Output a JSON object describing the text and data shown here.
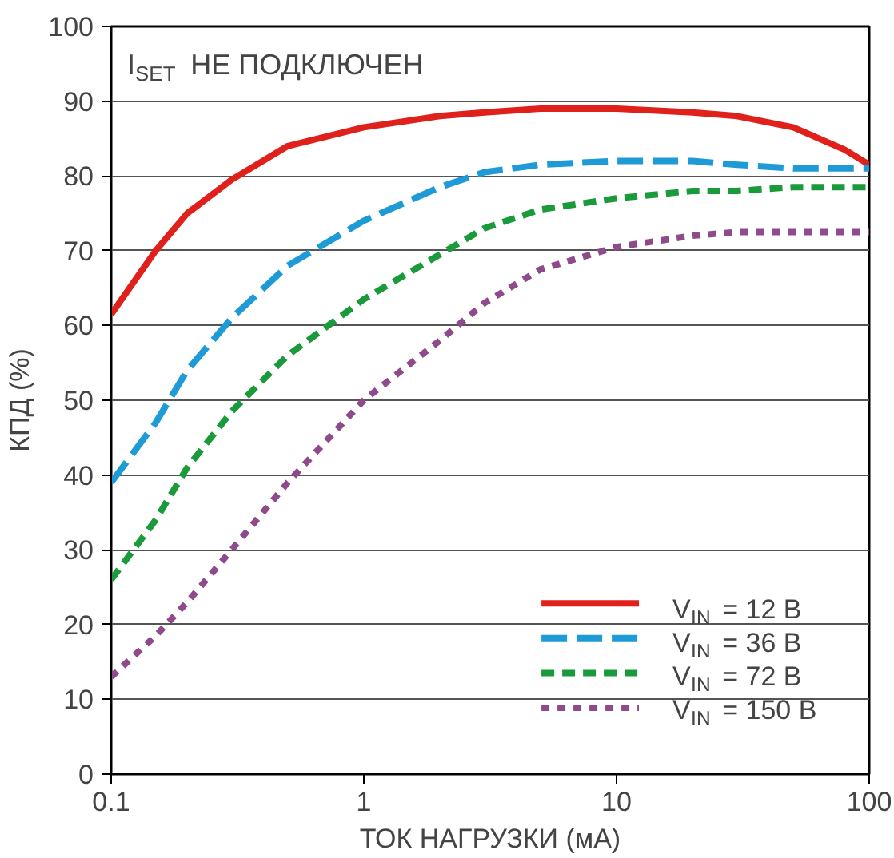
{
  "chart_data": {
    "type": "line",
    "xlabel": "ТОК НАГРУЗКИ (мА)",
    "ylabel": "КПД (%)",
    "annotations": [
      "I$_{SET}$ НЕ ПОДКЛЮЧЕН"
    ],
    "log": "x",
    "xlim": [
      0.1,
      100
    ],
    "xticks": [
      0.1,
      1,
      10,
      100
    ],
    "ylim": [
      0,
      100
    ],
    "yticks": [
      0,
      10,
      20,
      30,
      40,
      50,
      60,
      70,
      80,
      90,
      100
    ],
    "grid": "y",
    "legend": "bottom right",
    "marker": "none",
    "x": [
      0.1,
      0.15,
      0.2,
      0.3,
      0.5,
      1,
      2,
      3,
      5,
      10,
      20,
      30,
      50,
      80,
      100
    ],
    "series": [
      {
        "name": "V$_{IN}$ = 12 В",
        "color": "#e0201b",
        "line_style": "solid",
        "values": [
          61.5,
          70,
          75,
          79.5,
          84,
          86.5,
          88,
          88.5,
          89,
          89,
          88.5,
          88,
          86.5,
          83.5,
          81.5
        ]
      },
      {
        "name": "V$_{IN}$ = 36 В",
        "color": "#1e9ad6",
        "line_style": "dashed",
        "values": [
          39,
          47,
          54,
          61,
          68,
          74,
          78.5,
          80.5,
          81.5,
          82,
          82,
          81.5,
          81,
          81,
          81
        ]
      },
      {
        "name": "V$_{IN}$ = 72 В",
        "color": "#1a9a3a",
        "line_style": "dashed",
        "values": [
          26,
          34,
          41,
          48.5,
          56,
          63.5,
          69.5,
          73,
          75.5,
          77,
          78,
          78,
          78.5,
          78.5,
          78.5
        ]
      },
      {
        "name": "V$_{IN}$ = 150 В",
        "color": "#8e4a8a",
        "line_style": "dotted",
        "values": [
          13,
          18.5,
          23,
          30,
          39,
          50,
          58,
          63,
          67.5,
          70.5,
          72,
          72.5,
          72.5,
          72.5,
          72.5
        ]
      }
    ]
  }
}
